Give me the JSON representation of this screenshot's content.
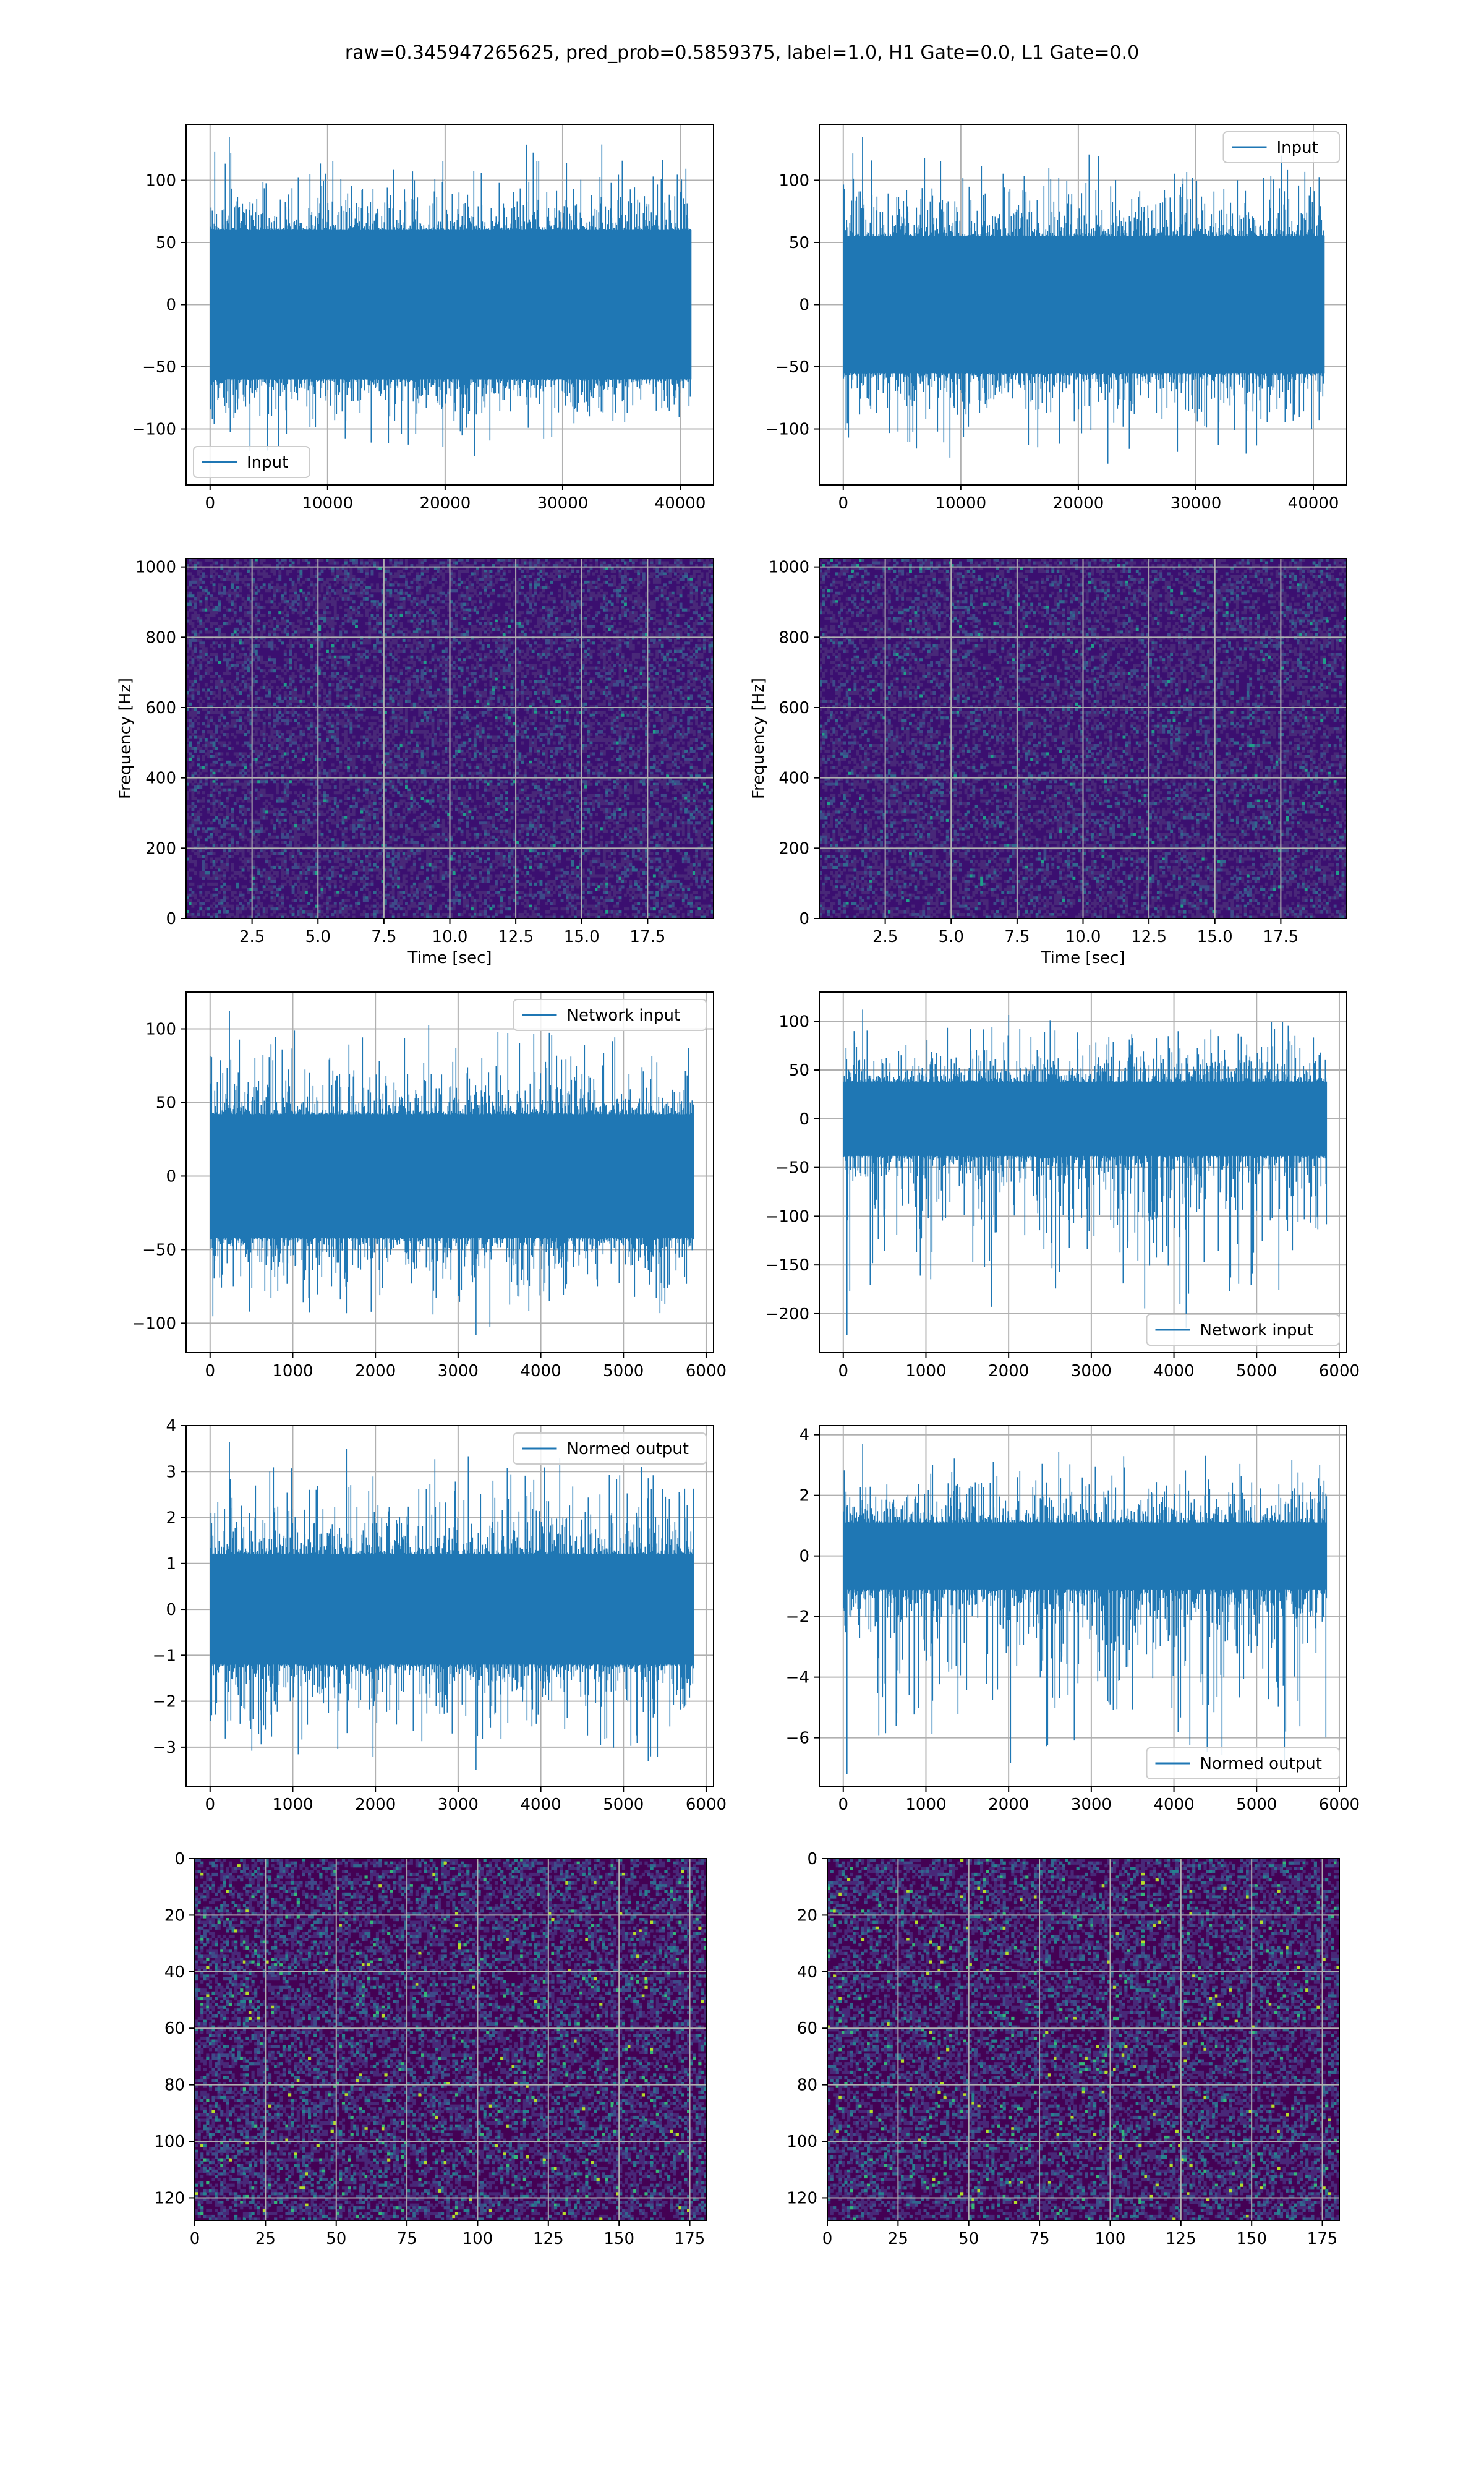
{
  "figure": {
    "title": "raw=0.345947265625, pred_prob=0.5859375, label=1.0, H1 Gate=0.0, L1 Gate=0.0"
  },
  "colors": {
    "line": "#1f77b4",
    "grid": "#b0b0b0",
    "spec_bg": "#3b0f70",
    "spec_dark": "#440154"
  },
  "chart_data": [
    {
      "id": "input-h1",
      "type": "line",
      "xlim": [
        -2040,
        42840
      ],
      "ylim": [
        -145,
        145
      ],
      "xticks": [
        0,
        10000,
        20000,
        30000,
        40000
      ],
      "yticks": [
        -100,
        -50,
        0,
        50,
        100
      ],
      "grid": true,
      "legend": "lower-left",
      "series": [
        {
          "name": "Input",
          "n": 40960,
          "band": [
            -60,
            60
          ],
          "peak_max": 135,
          "peak_min": -122
        }
      ]
    },
    {
      "id": "input-l1",
      "type": "line",
      "xlim": [
        -2040,
        42840
      ],
      "ylim": [
        -145,
        145
      ],
      "xticks": [
        0,
        10000,
        20000,
        30000,
        40000
      ],
      "yticks": [
        -100,
        -50,
        0,
        50,
        100
      ],
      "grid": true,
      "legend": "upper-right",
      "series": [
        {
          "name": "Input",
          "n": 40960,
          "band": [
            -55,
            55
          ],
          "peak_max": 135,
          "peak_min": -128
        }
      ]
    },
    {
      "id": "spectrogram-h1",
      "type": "heatmap",
      "xlim": [
        0,
        20
      ],
      "ylim": [
        0,
        1024
      ],
      "xticks": [
        2.5,
        5.0,
        7.5,
        10.0,
        12.5,
        15.0,
        17.5
      ],
      "xtick_labels": [
        "2.5",
        "5.0",
        "7.5",
        "10.0",
        "12.5",
        "15.0",
        "17.5"
      ],
      "yticks": [
        0,
        200,
        400,
        600,
        800,
        1000
      ],
      "xlabel": "Time [sec]",
      "ylabel": "Frequency [Hz]",
      "grid": true,
      "colormap": "viridis"
    },
    {
      "id": "spectrogram-l1",
      "type": "heatmap",
      "xlim": [
        0,
        20
      ],
      "ylim": [
        0,
        1024
      ],
      "xticks": [
        2.5,
        5.0,
        7.5,
        10.0,
        12.5,
        15.0,
        17.5
      ],
      "xtick_labels": [
        "2.5",
        "5.0",
        "7.5",
        "10.0",
        "12.5",
        "15.0",
        "17.5"
      ],
      "yticks": [
        0,
        200,
        400,
        600,
        800,
        1000
      ],
      "xlabel": "Time [sec]",
      "ylabel": "Frequency [Hz]",
      "grid": true,
      "colormap": "viridis"
    },
    {
      "id": "network-input-h1",
      "type": "line",
      "xlim": [
        -290,
        6090
      ],
      "ylim": [
        -120,
        125
      ],
      "xticks": [
        0,
        1000,
        2000,
        3000,
        4000,
        5000,
        6000
      ],
      "yticks": [
        -100,
        -50,
        0,
        50,
        100
      ],
      "grid": true,
      "legend": "upper-right",
      "series": [
        {
          "name": "Network input",
          "n": 5850,
          "band": [
            -42,
            42
          ],
          "peak_max": 112,
          "peak_min": -108
        }
      ]
    },
    {
      "id": "network-input-l1",
      "type": "line",
      "xlim": [
        -290,
        6090
      ],
      "ylim": [
        -240,
        130
      ],
      "xticks": [
        0,
        1000,
        2000,
        3000,
        4000,
        5000,
        6000
      ],
      "yticks": [
        -200,
        -150,
        -100,
        -50,
        0,
        50,
        100
      ],
      "grid": true,
      "legend": "lower-right",
      "series": [
        {
          "name": "Network input",
          "n": 5850,
          "band": [
            -38,
            38
          ],
          "peak_max": 112,
          "peak_min": -222
        }
      ]
    },
    {
      "id": "normed-output-h1",
      "type": "line",
      "xlim": [
        -290,
        6090
      ],
      "ylim": [
        -3.85,
        4.0
      ],
      "xticks": [
        0,
        1000,
        2000,
        3000,
        4000,
        5000,
        6000
      ],
      "yticks": [
        -3,
        -2,
        -1,
        0,
        1,
        2,
        3,
        4
      ],
      "grid": true,
      "legend": "upper-right",
      "series": [
        {
          "name": "Normed output",
          "n": 5850,
          "band": [
            -1.2,
            1.2
          ],
          "peak_max": 3.65,
          "peak_min": -3.5
        }
      ]
    },
    {
      "id": "normed-output-l1",
      "type": "line",
      "xlim": [
        -290,
        6090
      ],
      "ylim": [
        -7.6,
        4.3
      ],
      "xticks": [
        0,
        1000,
        2000,
        3000,
        4000,
        5000,
        6000
      ],
      "yticks": [
        -6,
        -4,
        -2,
        0,
        2,
        4
      ],
      "grid": true,
      "legend": "lower-right",
      "series": [
        {
          "name": "Normed output",
          "n": 5850,
          "band": [
            -1.1,
            1.1
          ],
          "peak_max": 3.7,
          "peak_min": -7.2
        }
      ]
    },
    {
      "id": "network-image-h1",
      "type": "heatmap",
      "xlim": [
        0,
        181
      ],
      "ylim": [
        128,
        0
      ],
      "xticks": [
        0,
        25,
        50,
        75,
        100,
        125,
        150,
        175
      ],
      "yticks": [
        0,
        20,
        40,
        60,
        80,
        100,
        120
      ],
      "grid": true,
      "colormap": "viridis"
    },
    {
      "id": "network-image-l1",
      "type": "heatmap",
      "xlim": [
        0,
        181
      ],
      "ylim": [
        128,
        0
      ],
      "xticks": [
        0,
        25,
        50,
        75,
        100,
        125,
        150,
        175
      ],
      "yticks": [
        0,
        20,
        40,
        60,
        80,
        100,
        120
      ],
      "grid": true,
      "colormap": "viridis"
    }
  ]
}
